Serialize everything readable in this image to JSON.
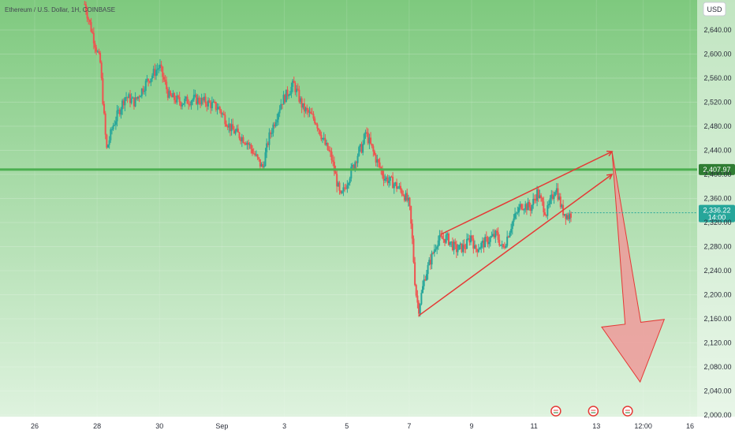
{
  "chart_data": {
    "type": "candlestick",
    "title": "Ethereum / U.S. Dollar, 1H, COINBASE",
    "currency_label": "USD",
    "ylim": [
      2000,
      2680
    ],
    "y_ticks": [
      2000,
      2040,
      2080,
      2120,
      2160,
      2200,
      2240,
      2280,
      2320,
      2360,
      2400,
      2440,
      2480,
      2520,
      2560,
      2600,
      2640
    ],
    "y_tick_labels": [
      "2,000.00",
      "2,040.00",
      "2,080.00",
      "2,120.00",
      "2,160.00",
      "2,200.00",
      "2,240.00",
      "2,280.00",
      "2,320.00",
      "2,360.00",
      "2,400.00",
      "2,440.00",
      "2,480.00",
      "2,520.00",
      "2,560.00",
      "2,600.00",
      "2,640.00"
    ],
    "x_ticks": [
      {
        "label": "26",
        "day": 26
      },
      {
        "label": "28",
        "day": 28
      },
      {
        "label": "30",
        "day": 30
      },
      {
        "label": "Sep",
        "day": 32
      },
      {
        "label": "3",
        "day": 34
      },
      {
        "label": "5",
        "day": 36
      },
      {
        "label": "7",
        "day": 38
      },
      {
        "label": "9",
        "day": 40
      },
      {
        "label": "11",
        "day": 42
      },
      {
        "label": "13",
        "day": 44
      },
      {
        "label": "12:00",
        "day": 45.5
      },
      {
        "label": "16",
        "day": 47
      }
    ],
    "series": [
      {
        "name": "Ethereum / U.S. Dollar",
        "path": [
          [
            27.6,
            2683
          ],
          [
            28.1,
            2585
          ],
          [
            28.3,
            2440
          ],
          [
            28.5,
            2480
          ],
          [
            28.9,
            2530
          ],
          [
            29.2,
            2520
          ],
          [
            29.6,
            2555
          ],
          [
            30.0,
            2580
          ],
          [
            30.3,
            2530
          ],
          [
            30.7,
            2520
          ],
          [
            31.1,
            2525
          ],
          [
            31.5,
            2520
          ],
          [
            31.9,
            2510
          ],
          [
            32.3,
            2475
          ],
          [
            32.8,
            2455
          ],
          [
            33.3,
            2410
          ],
          [
            33.5,
            2460
          ],
          [
            33.9,
            2520
          ],
          [
            34.3,
            2550
          ],
          [
            34.6,
            2510
          ],
          [
            35.0,
            2490
          ],
          [
            35.3,
            2450
          ],
          [
            35.5,
            2430
          ],
          [
            35.8,
            2360
          ],
          [
            36.1,
            2400
          ],
          [
            36.4,
            2440
          ],
          [
            36.5,
            2445
          ],
          [
            36.6,
            2470
          ],
          [
            36.9,
            2430
          ],
          [
            37.2,
            2395
          ],
          [
            37.5,
            2385
          ],
          [
            37.8,
            2370
          ],
          [
            38.0,
            2350
          ],
          [
            38.1,
            2290
          ],
          [
            38.2,
            2210
          ],
          [
            38.3,
            2175
          ],
          [
            38.5,
            2230
          ],
          [
            38.7,
            2260
          ],
          [
            38.9,
            2290
          ],
          [
            39.2,
            2295
          ],
          [
            39.5,
            2275
          ],
          [
            39.8,
            2280
          ],
          [
            40.0,
            2300
          ],
          [
            40.1,
            2275
          ],
          [
            40.5,
            2290
          ],
          [
            40.8,
            2300
          ],
          [
            41.0,
            2275
          ],
          [
            41.3,
            2320
          ],
          [
            41.6,
            2350
          ],
          [
            41.9,
            2345
          ],
          [
            42.1,
            2370
          ],
          [
            42.4,
            2335
          ],
          [
            42.7,
            2380
          ],
          [
            42.9,
            2340
          ],
          [
            43.1,
            2330
          ],
          [
            43.2,
            2336
          ]
        ]
      }
    ],
    "support_level": 2407.97,
    "last_price": 2336.22,
    "last_price_label": "2,336.22",
    "last_price_time": "14:00",
    "support_label": "2,407.97",
    "wedge_lines": [
      {
        "from": [
          38.3,
          2165
        ],
        "to": [
          44.5,
          2400
        ]
      },
      {
        "from": [
          39.0,
          2300
        ],
        "to": [
          44.5,
          2438
        ]
      }
    ],
    "projection_arrow": {
      "from": [
        44.5,
        2438
      ],
      "to": [
        45.4,
        2055
      ]
    },
    "event_icons": [
      42.7,
      43.9,
      45.0
    ],
    "colors": {
      "up_candle": "#26a69a",
      "down_candle": "#ef5350",
      "support_line": "#4caf50",
      "wedge_line": "#e53935",
      "arrow_fill": "#ef9a9a",
      "background_top": "#7ec97e",
      "background_bottom": "#e2f4e2",
      "last_price_tag": "#26a69a"
    }
  }
}
